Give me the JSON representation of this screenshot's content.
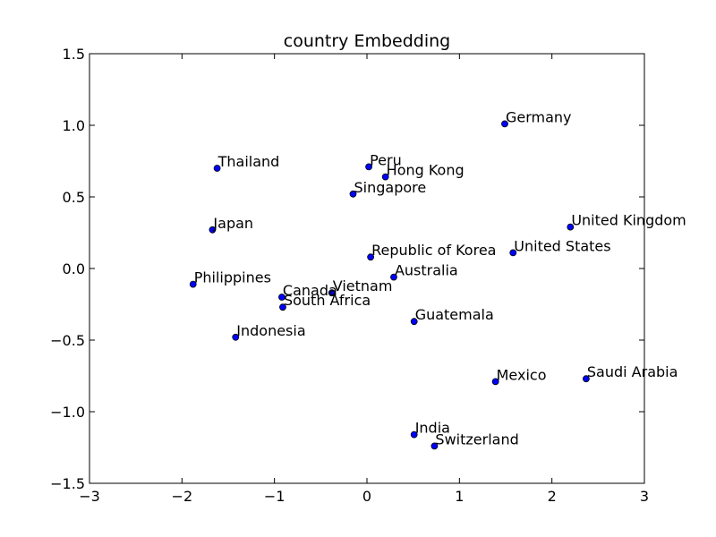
{
  "chart_data": {
    "type": "scatter",
    "title": "country Embedding",
    "xlabel": "",
    "ylabel": "",
    "xlim": [
      -3,
      3
    ],
    "ylim": [
      -1.5,
      1.5
    ],
    "xticks": [
      -3,
      -2,
      -1,
      0,
      1,
      2,
      3
    ],
    "xtick_labels": [
      "−3",
      "−2",
      "−1",
      "0",
      "1",
      "2",
      "3"
    ],
    "yticks": [
      1.5,
      1.0,
      0.5,
      0.0,
      -0.5,
      -1.0,
      -1.5
    ],
    "ytick_labels": [
      "1.5",
      "1.0",
      "0.5",
      "0.0",
      "−0.5",
      "−1.0",
      "−1.5"
    ],
    "grid": false,
    "marker_color": "#0000ff",
    "marker_edge_color": "#000000",
    "points": [
      {
        "label": "Germany",
        "x": 1.49,
        "y": 1.01
      },
      {
        "label": "Thailand",
        "x": -1.62,
        "y": 0.7
      },
      {
        "label": "Peru",
        "x": 0.02,
        "y": 0.71
      },
      {
        "label": "Hong Kong",
        "x": 0.2,
        "y": 0.64
      },
      {
        "label": "Singapore",
        "x": -0.15,
        "y": 0.52
      },
      {
        "label": "Japan",
        "x": -1.67,
        "y": 0.27
      },
      {
        "label": "United Kingdom",
        "x": 2.2,
        "y": 0.29
      },
      {
        "label": "United States",
        "x": 1.58,
        "y": 0.11
      },
      {
        "label": "Republic of Korea",
        "x": 0.04,
        "y": 0.08
      },
      {
        "label": "Australia",
        "x": 0.29,
        "y": -0.06
      },
      {
        "label": "Philippines",
        "x": -1.88,
        "y": -0.11
      },
      {
        "label": "Vietnam",
        "x": -0.38,
        "y": -0.17
      },
      {
        "label": "Canada",
        "x": -0.92,
        "y": -0.2
      },
      {
        "label": "South Africa",
        "x": -0.91,
        "y": -0.27
      },
      {
        "label": "Guatemala",
        "x": 0.51,
        "y": -0.37
      },
      {
        "label": "Indonesia",
        "x": -1.42,
        "y": -0.48
      },
      {
        "label": "Saudi Arabia",
        "x": 2.37,
        "y": -0.77
      },
      {
        "label": "Mexico",
        "x": 1.39,
        "y": -0.79
      },
      {
        "label": "India",
        "x": 0.51,
        "y": -1.16
      },
      {
        "label": "Switzerland",
        "x": 0.73,
        "y": -1.24
      }
    ]
  }
}
